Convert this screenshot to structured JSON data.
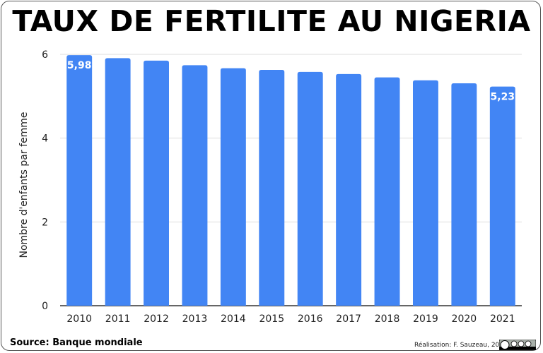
{
  "header": {
    "title": "TAUX DE FERTILITE AU NIGERIA"
  },
  "footer": {
    "source": "Source: Banque mondiale",
    "credit": "Réalisation: F. Sauzeau, 2023",
    "license_icon": "cc-by-nc-sa-icon"
  },
  "colors": {
    "bar": "#4285f4",
    "grid": "#dddddd",
    "axis": "#333333"
  },
  "chart_data": {
    "type": "bar",
    "title": "TAUX DE FERTILITE AU NIGERIA",
    "xlabel": "",
    "ylabel": "Nombre d'enfants par femme",
    "categories": [
      "2010",
      "2011",
      "2012",
      "2013",
      "2014",
      "2015",
      "2016",
      "2017",
      "2018",
      "2019",
      "2020",
      "2021"
    ],
    "values": [
      5.98,
      5.91,
      5.85,
      5.74,
      5.67,
      5.63,
      5.58,
      5.53,
      5.45,
      5.38,
      5.31,
      5.23
    ],
    "data_labels": {
      "2010": "5,98",
      "2021": "5,23"
    },
    "ylim": [
      0,
      6
    ],
    "yticks": [
      0,
      2,
      4,
      6
    ],
    "grid": true,
    "legend": "none"
  }
}
